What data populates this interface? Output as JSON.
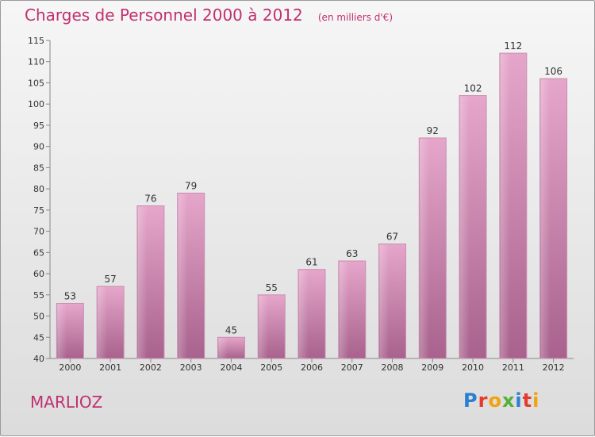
{
  "header": {
    "title": "Charges de Personnel 2000 à 2012",
    "subtitle": "(en milliers d'€)"
  },
  "footer": {
    "town": "MARLIOZ",
    "logo_text": "Proxiti"
  },
  "colors": {
    "title": "#c03070",
    "bar_light": "#e8a8cc",
    "bar_dark": "#a8608c",
    "axis": "#888888"
  },
  "chart_data": {
    "type": "bar",
    "categories": [
      "2000",
      "2001",
      "2002",
      "2003",
      "2004",
      "2005",
      "2006",
      "2007",
      "2008",
      "2009",
      "2010",
      "2011",
      "2012"
    ],
    "values": [
      53,
      57,
      76,
      79,
      45,
      55,
      61,
      63,
      67,
      92,
      102,
      112,
      106
    ],
    "ylim": [
      40,
      115
    ],
    "yticks": [
      40,
      45,
      50,
      55,
      60,
      65,
      70,
      75,
      80,
      85,
      90,
      95,
      100,
      105,
      110,
      115
    ],
    "grid": false,
    "data_labels": true
  }
}
